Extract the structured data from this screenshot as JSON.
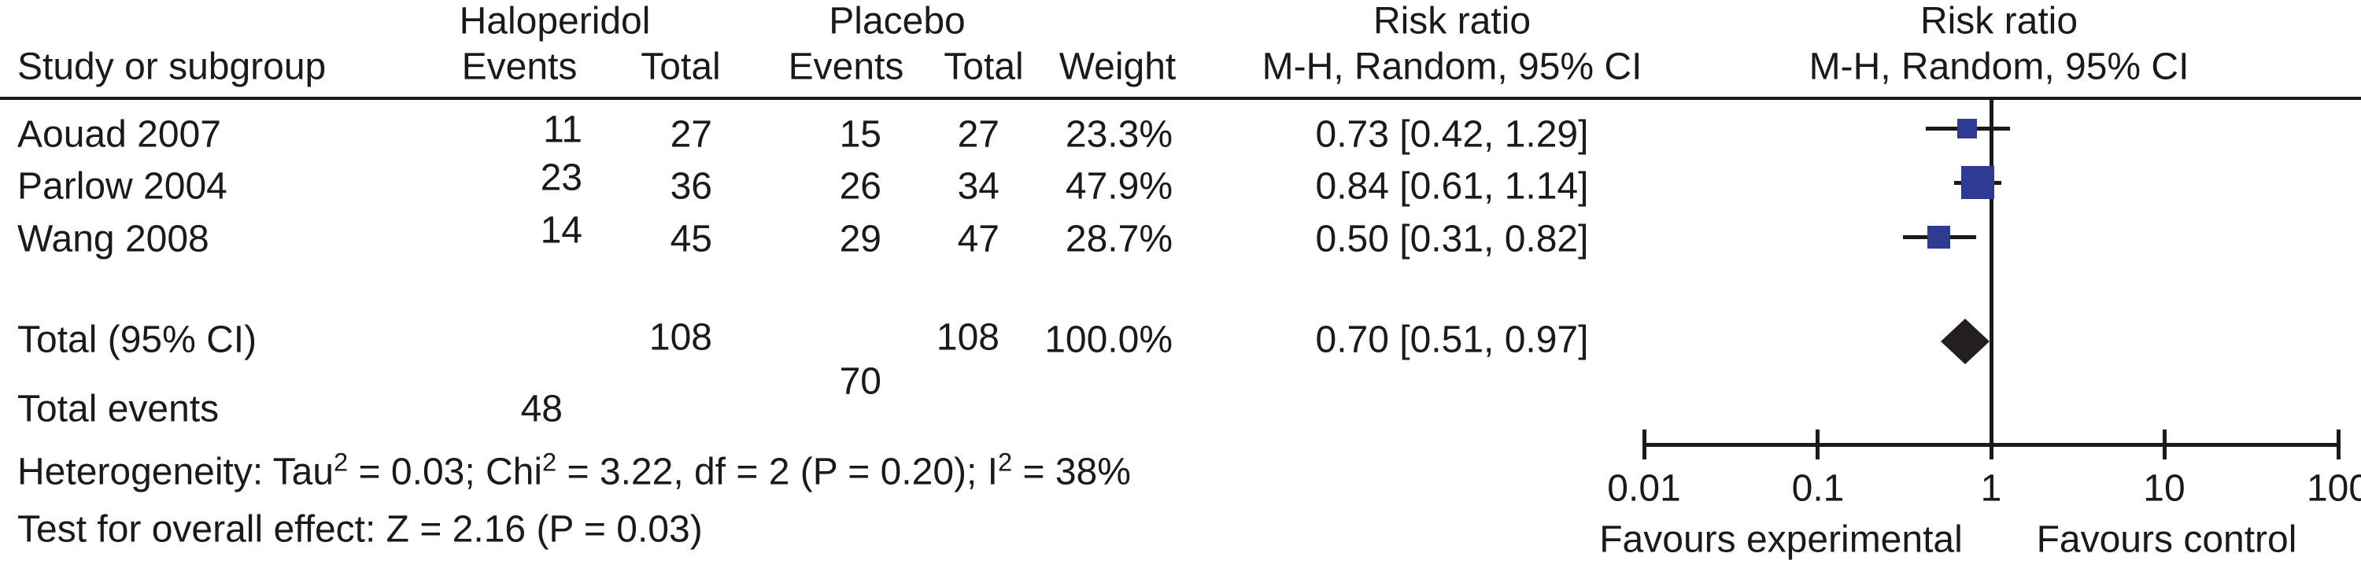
{
  "table": {
    "headers": {
      "group1": "Haloperidol",
      "group2": "Placebo",
      "study": "Study or subgroup",
      "events": "Events",
      "total": "Total",
      "weight": "Weight",
      "risk_ratio": "Risk ratio",
      "method": "M-H, Random, 95% CI"
    },
    "studies": [
      {
        "name": "Aouad 2007",
        "h_events": "11",
        "h_total": "27",
        "p_events": "15",
        "p_total": "27",
        "weight": "23.3%",
        "rr_ci": "0.73 [0.42, 1.29]"
      },
      {
        "name": "Parlow 2004",
        "h_events": "23",
        "h_total": "36",
        "p_events": "26",
        "p_total": "34",
        "weight": "47.9%",
        "rr_ci": "0.84 [0.61, 1.14]"
      },
      {
        "name": "Wang 2008",
        "h_events": "14",
        "h_total": "45",
        "p_events": "29",
        "p_total": "47",
        "weight": "28.7%",
        "rr_ci": "0.50 [0.31, 0.82]"
      }
    ],
    "total_row": {
      "label": "Total (95% CI)",
      "h_total": "108",
      "p_total": "108",
      "weight": "100.0%",
      "rr_ci": "0.70 [0.51, 0.97]"
    },
    "total_events": {
      "label": "Total events",
      "h_events": "48",
      "p_events": "70"
    }
  },
  "footer": {
    "heterogeneity": {
      "seg1": "Heterogeneity: Tau",
      "sup1": "2",
      "seg2": " = 0.03; Chi",
      "sup2": "2",
      "seg3": " = 3.22, df = 2 (P = 0.20); I",
      "sup3": "2",
      "seg4": " = 38%"
    },
    "overall_effect": "Test for overall effect: Z = 2.16 (P = 0.03)"
  },
  "chart_data": {
    "type": "forest",
    "x_scale": "log",
    "axis_ticks": [
      0.01,
      0.1,
      1,
      10,
      100
    ],
    "tick_labels": [
      "0.01",
      "0.1",
      "1",
      "10",
      "100"
    ],
    "axis_label_left": "Favours experimental",
    "axis_label_right": "Favours control",
    "reference_value": 1,
    "studies": [
      {
        "name": "Aouad 2007",
        "rr": 0.73,
        "ci_low": 0.42,
        "ci_high": 1.29,
        "weight_pct": 23.3
      },
      {
        "name": "Parlow 2004",
        "rr": 0.84,
        "ci_low": 0.61,
        "ci_high": 1.14,
        "weight_pct": 47.9
      },
      {
        "name": "Wang 2008",
        "rr": 0.5,
        "ci_low": 0.31,
        "ci_high": 0.82,
        "weight_pct": 28.7
      }
    ],
    "pooled": {
      "rr": 0.7,
      "ci_low": 0.51,
      "ci_high": 0.97
    },
    "marker_color": "#2e3a94",
    "diamond_color": "#231f20",
    "line_color": "#1a1a1a"
  }
}
